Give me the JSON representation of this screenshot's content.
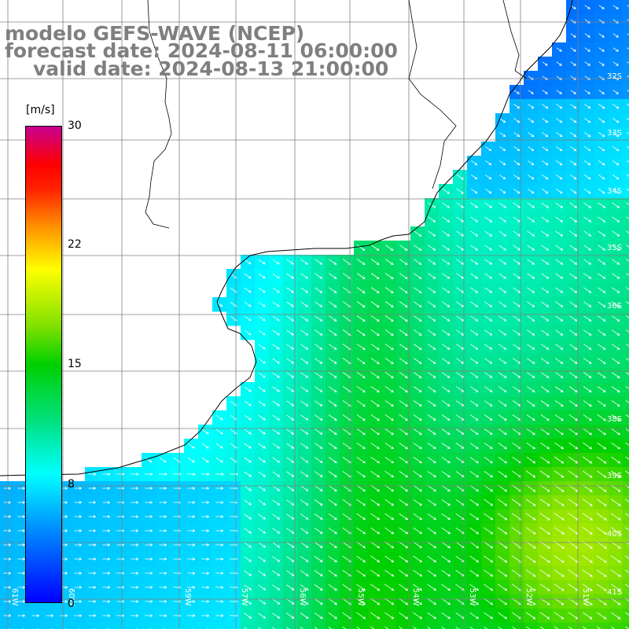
{
  "titles": {
    "model": "modelo GEFS-WAVE (NCEP)",
    "forecast": "forecast date: 2024-08-11 06:00:00",
    "valid": "valid date: 2024-08-13 21:00:00"
  },
  "colorbar": {
    "unit": "[m/s]",
    "ticks": [
      "0",
      "8",
      "15",
      "22",
      "30"
    ],
    "min": 0,
    "max": 30,
    "colors": [
      "#0000ff",
      "#00ffff",
      "#00d000",
      "#ffff00",
      "#ff0000",
      "#c80090"
    ]
  },
  "map": {
    "lat_labels": [
      "32S",
      "33S",
      "34S",
      "35S",
      "36S",
      "38S",
      "39S",
      "40S",
      "41S"
    ],
    "lon_labels": [
      "61W",
      "60W",
      "59W",
      "57W",
      "56W",
      "55W",
      "54W",
      "53W",
      "52W",
      "51W"
    ],
    "land_color": "#ffffff",
    "grid_color": "#808080",
    "coast_color": "#000000",
    "arrow_color": "#ffffff",
    "wind_direction": "from north-west toward south-east"
  }
}
